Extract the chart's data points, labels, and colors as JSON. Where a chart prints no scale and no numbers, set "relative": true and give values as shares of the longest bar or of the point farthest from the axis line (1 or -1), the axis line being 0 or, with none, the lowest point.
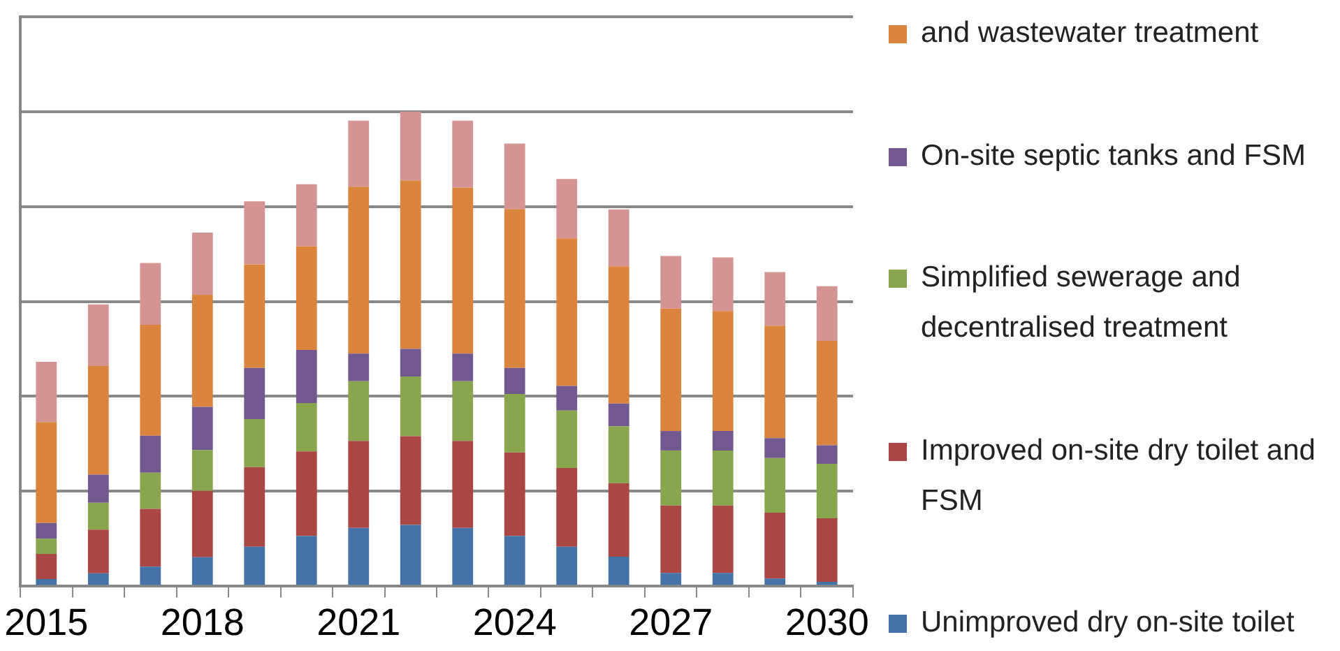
{
  "chart_data": {
    "type": "bar",
    "stacked": true,
    "relative": true,
    "grid": "y",
    "legend": "right",
    "categories": [
      "2015",
      null,
      null,
      "2018",
      null,
      null,
      "2021",
      null,
      null,
      "2024",
      null,
      null,
      "2027",
      null,
      null,
      "2030"
    ],
    "series": [
      {
        "name": "Unimproved dry on-site toilet",
        "color": "#4572a7",
        "values": [
          0.015,
          0.027,
          0.041,
          0.061,
          0.083,
          0.106,
          0.123,
          0.129,
          0.123,
          0.106,
          0.083,
          0.062,
          0.028,
          0.028,
          0.016,
          0.009
        ]
      },
      {
        "name": "Improved on-site dry toilet and FSM",
        "color": "#aa4643",
        "values": [
          0.053,
          0.092,
          0.122,
          0.14,
          0.168,
          0.178,
          0.183,
          0.187,
          0.183,
          0.176,
          0.166,
          0.155,
          0.142,
          0.142,
          0.139,
          0.134
        ]
      },
      {
        "name": "Simplified sewerage and decentralised treatment",
        "color": "#89a54e",
        "values": [
          0.032,
          0.057,
          0.076,
          0.086,
          0.101,
          0.102,
          0.126,
          0.126,
          0.126,
          0.123,
          0.121,
          0.12,
          0.116,
          0.116,
          0.115,
          0.115
        ]
      },
      {
        "name": "On-site septic tanks and FSM",
        "color": "#71588f",
        "values": [
          0.033,
          0.059,
          0.078,
          0.091,
          0.108,
          0.112,
          0.058,
          0.058,
          0.058,
          0.055,
          0.052,
          0.048,
          0.041,
          0.041,
          0.042,
          0.039
        ]
      },
      {
        "name": "and wastewater treatment",
        "color": "#db843d",
        "values": [
          0.213,
          0.229,
          0.234,
          0.236,
          0.218,
          0.218,
          0.352,
          0.355,
          0.35,
          0.335,
          0.311,
          0.289,
          0.258,
          0.253,
          0.237,
          0.22
        ]
      },
      {
        "color": "#d49494",
        "values": [
          0.127,
          0.13,
          0.13,
          0.131,
          0.133,
          0.131,
          0.139,
          0.145,
          0.141,
          0.138,
          0.125,
          0.12,
          0.111,
          0.113,
          0.113,
          0.115
        ]
      }
    ]
  }
}
